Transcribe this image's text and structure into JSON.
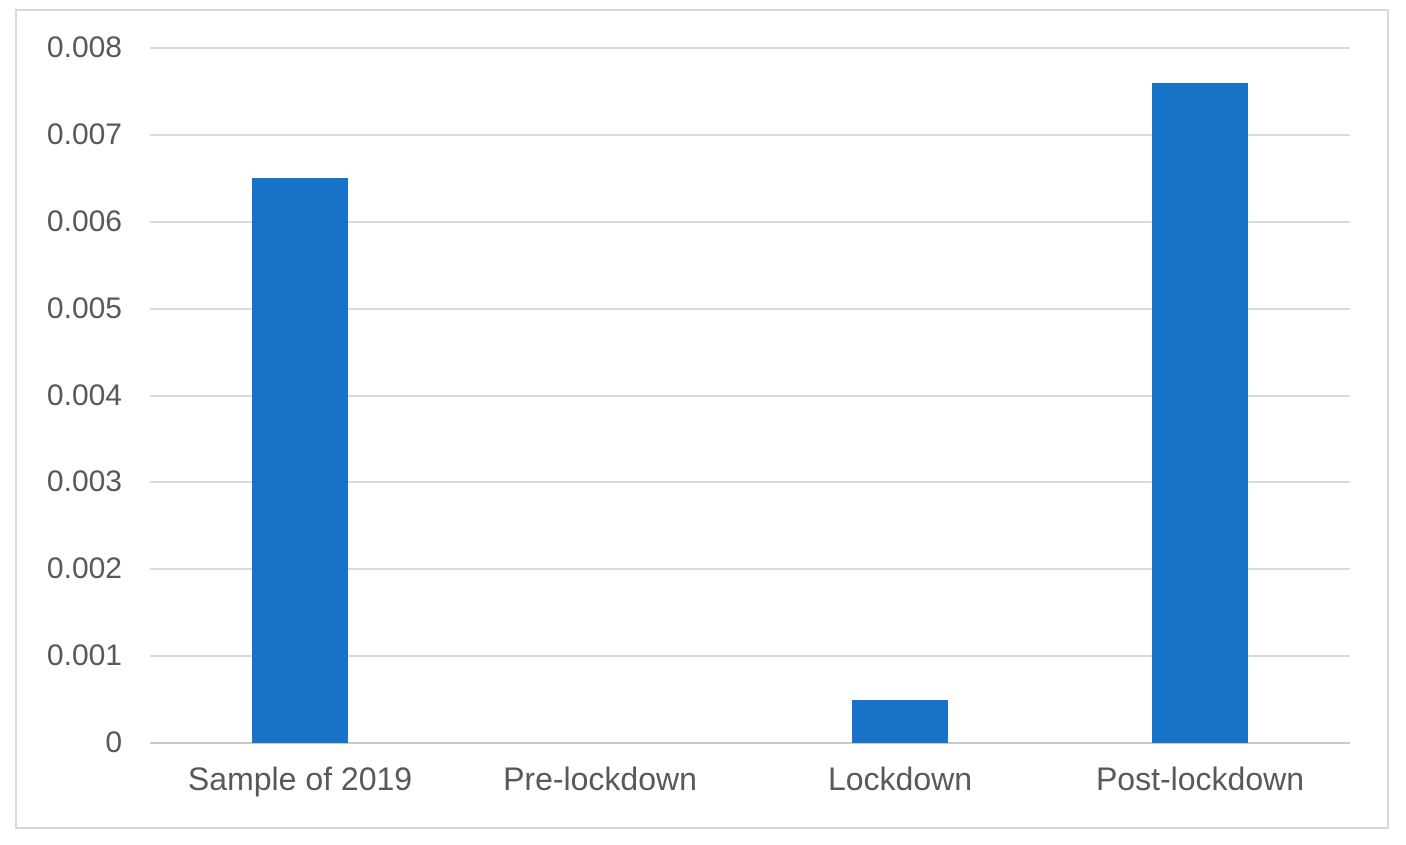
{
  "chart_data": {
    "type": "bar",
    "title": "",
    "xlabel": "",
    "ylabel": "",
    "categories": [
      "Sample of 2019",
      "Pre-lockdown",
      "Lockdown",
      "Post-lockdown"
    ],
    "values": [
      0.0065,
      0,
      0.0005,
      0.0076
    ],
    "ylim": [
      0,
      0.008
    ],
    "ytick_step": 0.001,
    "ytick_labels": [
      "0",
      "0.001",
      "0.002",
      "0.003",
      "0.004",
      "0.005",
      "0.006",
      "0.007",
      "0.008"
    ],
    "grid": true,
    "legend": false,
    "colors": {
      "bar": "#1673c8",
      "gridline": "#dbdbdb",
      "axis_line": "#c9c9c9",
      "text": "#595959",
      "frame_border": "#d9d9d9"
    }
  }
}
